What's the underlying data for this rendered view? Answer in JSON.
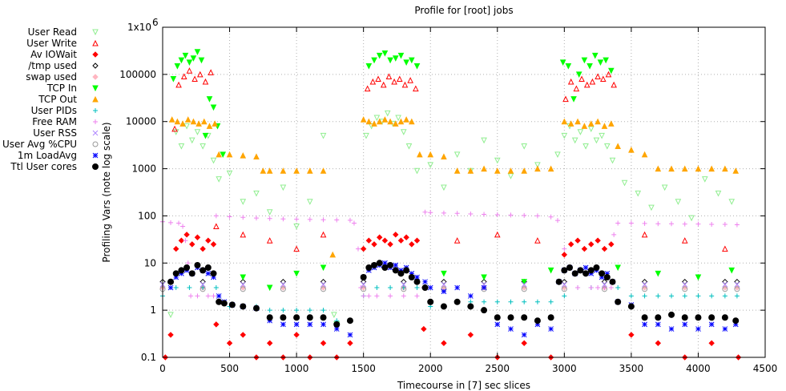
{
  "chart_data": {
    "type": "scatter",
    "title": "Profile for [root] jobs",
    "xlabel": "Timecourse in [7] sec slices",
    "ylabel": "Profiling Vars (note log scale)",
    "xlim": [
      0,
      4500
    ],
    "ylim": [
      0.1,
      1000000
    ],
    "y_scale": "log",
    "grid": true,
    "legend_position": "left",
    "x_ticks": [
      0,
      500,
      1000,
      1500,
      2000,
      2500,
      3000,
      3500,
      4000,
      4500
    ],
    "x_tick_labels": [
      "0",
      "500",
      "1000",
      "1500",
      "2000",
      "2500",
      "3000",
      "3500",
      "4000",
      "4500"
    ],
    "y_ticks": [
      0.1,
      1,
      10,
      100,
      1000,
      10000,
      100000
    ],
    "y_tick_labels": [
      "0.1",
      "1",
      "10",
      "100",
      "1000",
      "10000",
      "100000"
    ],
    "y_top_label": "1x10",
    "y_top_exponent": "6",
    "series": [
      {
        "name": "User Read",
        "marker": "triangle-down-open",
        "color": "#90ee90",
        "x": [
          60,
          100,
          140,
          180,
          220,
          260,
          300,
          340,
          380,
          420,
          500,
          600,
          700,
          800,
          900,
          1000,
          1100,
          1200,
          1280,
          1520,
          1560,
          1600,
          1640,
          1680,
          1720,
          1760,
          1800,
          1840,
          1900,
          2000,
          2100,
          2200,
          2300,
          2400,
          2500,
          2600,
          2700,
          2800,
          2950,
          3000,
          3040,
          3080,
          3120,
          3160,
          3200,
          3240,
          3280,
          3320,
          3360,
          3450,
          3550,
          3650,
          3750,
          3850,
          3950,
          4050,
          4150,
          4250
        ],
        "y": [
          0.8,
          6000,
          3000,
          8000,
          4000,
          6000,
          3000,
          5000,
          1500,
          600,
          800,
          200,
          300,
          120,
          400,
          60,
          200,
          5000,
          0.8,
          5000,
          8000,
          12000,
          10000,
          15000,
          9000,
          12000,
          6000,
          3000,
          900,
          1200,
          400,
          2000,
          900,
          4000,
          1500,
          700,
          3000,
          1200,
          2000,
          5000,
          8000,
          4000,
          6000,
          3000,
          7000,
          4000,
          5000,
          3000,
          1500,
          500,
          300,
          150,
          400,
          200,
          90,
          600,
          300,
          200
        ]
      },
      {
        "name": "User Write",
        "marker": "triangle-up-open",
        "color": "#ff0000",
        "x": [
          90,
          120,
          160,
          200,
          240,
          280,
          320,
          360,
          400,
          600,
          800,
          1000,
          1200,
          1530,
          1570,
          1610,
          1650,
          1690,
          1730,
          1770,
          1810,
          1850,
          1890,
          2200,
          2500,
          2800,
          3010,
          3050,
          3090,
          3130,
          3170,
          3210,
          3250,
          3290,
          3330,
          3370,
          3600,
          3900,
          4200
        ],
        "y": [
          7000,
          60000,
          90000,
          120000,
          80000,
          100000,
          70000,
          110000,
          60,
          40,
          30,
          20,
          40,
          50000,
          70000,
          80000,
          60000,
          90000,
          70000,
          80000,
          60000,
          75000,
          50000,
          30,
          40,
          30,
          30000,
          70000,
          50000,
          80000,
          60000,
          70000,
          90000,
          80000,
          100000,
          60000,
          40,
          30,
          20
        ]
      },
      {
        "name": "Av IOWait",
        "marker": "diamond-filled",
        "color": "#ff0000",
        "x": [
          20,
          60,
          100,
          140,
          180,
          220,
          260,
          300,
          340,
          380,
          400,
          500,
          600,
          700,
          800,
          900,
          1000,
          1100,
          1200,
          1300,
          1400,
          1500,
          1540,
          1580,
          1620,
          1660,
          1700,
          1740,
          1780,
          1820,
          1860,
          1900,
          1950,
          2100,
          2300,
          2500,
          2700,
          2900,
          3000,
          3050,
          3100,
          3150,
          3200,
          3250,
          3300,
          3350,
          3500,
          3700,
          3900,
          4100,
          4300
        ],
        "y": [
          0.1,
          0.3,
          20,
          30,
          40,
          25,
          35,
          20,
          30,
          25,
          0.5,
          0.2,
          0.3,
          0.1,
          0.2,
          0.1,
          0.3,
          0.1,
          0.2,
          0.1,
          0.2,
          20,
          30,
          25,
          35,
          30,
          25,
          40,
          30,
          35,
          25,
          30,
          0.4,
          0.2,
          0.3,
          0.1,
          0.2,
          0.1,
          15,
          25,
          30,
          20,
          25,
          30,
          20,
          25,
          0.3,
          0.2,
          0.1,
          0.2,
          0.1
        ]
      },
      {
        "name": "/tmp used",
        "marker": "diamond-open",
        "color": "#000000",
        "x": [
          0,
          300,
          600,
          900,
          1200,
          1500,
          1800,
          2100,
          2400,
          2700,
          3000,
          3300,
          3600,
          3900,
          4200,
          4290
        ],
        "y": [
          4,
          4,
          4,
          4,
          4,
          4,
          4,
          4,
          4,
          4,
          4,
          4,
          4,
          4,
          4,
          4
        ]
      },
      {
        "name": "swap used",
        "marker": "diamond-filled",
        "color": "#ffb6c1",
        "x": [
          0,
          300,
          600,
          900,
          1200,
          1500,
          1800,
          2100,
          2400,
          2700,
          3000,
          3300,
          3600,
          3900,
          4200,
          4290
        ],
        "y": [
          3,
          3,
          3,
          3,
          3,
          3,
          3,
          3,
          3,
          3,
          3,
          3,
          3,
          3,
          3,
          3
        ]
      },
      {
        "name": "TCP In",
        "marker": "triangle-down-filled",
        "color": "#00ff00",
        "x": [
          80,
          110,
          140,
          170,
          200,
          230,
          260,
          290,
          320,
          350,
          380,
          410,
          450,
          600,
          800,
          1000,
          1200,
          1300,
          1540,
          1580,
          1620,
          1660,
          1700,
          1740,
          1780,
          1820,
          1860,
          1900,
          2100,
          2400,
          2700,
          2900,
          2990,
          3030,
          3070,
          3110,
          3150,
          3190,
          3230,
          3270,
          3310,
          3350,
          3400,
          3700,
          4000,
          4250
        ],
        "y": [
          80000,
          150000,
          200000,
          250000,
          180000,
          220000,
          300000,
          200000,
          5000,
          30000,
          20000,
          8000,
          2000,
          5,
          3,
          6,
          8,
          0.5,
          150000,
          200000,
          250000,
          280000,
          200000,
          220000,
          250000,
          180000,
          200000,
          150000,
          6,
          5,
          4,
          7,
          180000,
          150000,
          30000,
          100000,
          200000,
          150000,
          250000,
          180000,
          200000,
          120000,
          8,
          6,
          5,
          7
        ]
      },
      {
        "name": "TCP Out",
        "marker": "triangle-up-filled",
        "color": "#ffa500",
        "x": [
          70,
          110,
          150,
          190,
          230,
          270,
          310,
          350,
          390,
          420,
          500,
          600,
          700,
          750,
          800,
          900,
          1000,
          1100,
          1200,
          1270,
          1500,
          1540,
          1580,
          1620,
          1660,
          1700,
          1740,
          1780,
          1820,
          1860,
          1920,
          2000,
          2100,
          2200,
          2300,
          2400,
          2500,
          2600,
          2700,
          2800,
          2900,
          3000,
          3050,
          3100,
          3150,
          3200,
          3250,
          3300,
          3350,
          3400,
          3500,
          3600,
          3700,
          3800,
          3900,
          4000,
          4100,
          4200,
          4280
        ],
        "y": [
          11000,
          10000,
          9000,
          11000,
          10000,
          9000,
          10000,
          8000,
          9000,
          2000,
          2000,
          1900,
          1800,
          900,
          900,
          900,
          900,
          900,
          900,
          15,
          11000,
          10000,
          9000,
          10000,
          11000,
          10000,
          9000,
          10000,
          11000,
          10000,
          2000,
          2000,
          1800,
          900,
          900,
          1000,
          900,
          900,
          900,
          1000,
          1000,
          10000,
          9000,
          10000,
          8000,
          9000,
          10000,
          8000,
          9000,
          3000,
          2500,
          2000,
          1000,
          1000,
          1000,
          1000,
          1000,
          1000,
          900
        ]
      },
      {
        "name": "User PIDs",
        "marker": "plus",
        "color": "#00bfbf",
        "x": [
          0,
          100,
          200,
          300,
          400,
          500,
          600,
          700,
          800,
          900,
          1000,
          1100,
          1200,
          1300,
          1400,
          1500,
          1600,
          1700,
          1800,
          1900,
          2000,
          2100,
          2200,
          2300,
          2400,
          2500,
          2600,
          2700,
          2800,
          2900,
          3000,
          3100,
          3200,
          3300,
          3400,
          3500,
          3600,
          3700,
          3800,
          3900,
          4000,
          4100,
          4200,
          4290
        ],
        "y": [
          2,
          3,
          3,
          3,
          3,
          1.2,
          1.2,
          1.2,
          1,
          1,
          1,
          1,
          1,
          0.6,
          0.6,
          2,
          3,
          3,
          3,
          3,
          1.2,
          1.2,
          1.5,
          1.5,
          1.5,
          1.5,
          1.5,
          1.5,
          1.5,
          1.5,
          2,
          3,
          3,
          3,
          3,
          2,
          2,
          2,
          2,
          2,
          2,
          2,
          2,
          2
        ]
      },
      {
        "name": "Free RAM",
        "marker": "plus",
        "color": "#ee82ee",
        "x": [
          0,
          60,
          120,
          150,
          170,
          190,
          210,
          260,
          340,
          380,
          400,
          500,
          600,
          700,
          800,
          900,
          1000,
          1100,
          1200,
          1300,
          1400,
          1430,
          1460,
          1480,
          1500,
          1540,
          1600,
          1700,
          1800,
          1900,
          1950,
          1960,
          2000,
          2100,
          2200,
          2300,
          2400,
          2500,
          2600,
          2700,
          2800,
          2900,
          2950,
          3000,
          3100,
          3200,
          3250,
          3300,
          3350,
          3370,
          3400,
          3500,
          3600,
          3700,
          3800,
          3900,
          4000,
          4100,
          4200,
          4290
        ],
        "y": [
          75,
          72,
          70,
          60,
          30,
          10,
          2,
          2,
          2,
          2,
          100,
          96,
          93,
          90,
          88,
          86,
          85,
          84,
          83,
          82,
          81,
          70,
          20,
          3,
          2,
          2,
          2,
          2,
          2,
          2,
          3,
          120,
          118,
          115,
          113,
          110,
          108,
          106,
          104,
          102,
          100,
          95,
          80,
          20,
          3,
          3,
          3,
          3,
          3,
          40,
          70,
          70,
          69,
          68,
          68,
          67,
          67,
          66,
          66,
          65
        ]
      },
      {
        "name": "User RSS",
        "marker": "cross",
        "color": "#b088ff",
        "x": [
          0,
          300,
          600,
          900,
          1200,
          1500,
          1800,
          2100,
          2400,
          2700,
          3000,
          3300,
          3600,
          3900,
          4200,
          4290
        ],
        "y": [
          3.5,
          3.5,
          3.5,
          3.5,
          3.5,
          3.5,
          3.5,
          3.5,
          3.5,
          3.5,
          3.5,
          3.5,
          3.5,
          3.5,
          3.5,
          3.5
        ]
      },
      {
        "name": "User Avg %CPU",
        "marker": "circle-open",
        "color": "#999999",
        "x": [
          0,
          300,
          600,
          900,
          1200,
          1500,
          1800,
          2100,
          2400,
          2700,
          3000,
          3300,
          3600,
          3900,
          4200,
          4290
        ],
        "y": [
          2.8,
          2.8,
          2.8,
          2.8,
          2.8,
          2.8,
          2.8,
          2.8,
          2.8,
          2.8,
          2.8,
          2.8,
          2.8,
          2.8,
          2.8,
          2.8
        ]
      },
      {
        "name": "1m LoadAvg",
        "marker": "star",
        "color": "#0000ff",
        "x": [
          60,
          100,
          140,
          180,
          220,
          260,
          300,
          340,
          380,
          420,
          460,
          520,
          600,
          700,
          800,
          900,
          1000,
          1100,
          1200,
          1300,
          1400,
          1500,
          1540,
          1580,
          1620,
          1660,
          1700,
          1740,
          1780,
          1820,
          1860,
          1900,
          1960,
          2000,
          2100,
          2200,
          2300,
          2400,
          2500,
          2600,
          2700,
          2800,
          2900,
          2960,
          3000,
          3040,
          3080,
          3120,
          3160,
          3200,
          3240,
          3280,
          3320,
          3360,
          3400,
          3500,
          3600,
          3700,
          3800,
          3900,
          4000,
          4100,
          4200,
          4280
        ],
        "y": [
          3,
          5,
          6,
          7,
          6,
          8,
          7,
          6,
          5,
          2,
          1.5,
          1.3,
          1.2,
          1.1,
          0.6,
          0.5,
          0.5,
          0.5,
          0.5,
          0.4,
          0.3,
          5,
          7,
          8,
          9,
          10,
          8,
          9,
          7,
          8,
          6,
          5,
          4,
          3,
          2.5,
          3,
          2,
          3,
          0.5,
          0.4,
          0.3,
          0.5,
          0.4,
          4,
          7,
          8,
          6,
          7,
          8,
          6,
          7,
          5,
          6,
          4,
          1.5,
          1.3,
          0.5,
          0.5,
          0.4,
          0.5,
          0.4,
          0.5,
          0.4,
          0.5
        ]
      },
      {
        "name": "Ttl User cores",
        "marker": "circle-filled",
        "color": "#000000",
        "x": [
          60,
          100,
          140,
          180,
          220,
          260,
          300,
          340,
          380,
          420,
          460,
          520,
          600,
          700,
          800,
          900,
          1000,
          1100,
          1200,
          1300,
          1400,
          1500,
          1540,
          1580,
          1620,
          1660,
          1700,
          1740,
          1780,
          1820,
          1860,
          1900,
          1960,
          2000,
          2100,
          2200,
          2300,
          2400,
          2500,
          2600,
          2700,
          2800,
          2900,
          2960,
          3000,
          3040,
          3080,
          3120,
          3160,
          3200,
          3240,
          3280,
          3320,
          3360,
          3400,
          3500,
          3600,
          3700,
          3800,
          3900,
          4000,
          4100,
          4200,
          4280
        ],
        "y": [
          4,
          6,
          7,
          8,
          6,
          9,
          7,
          8,
          6,
          1.5,
          1.4,
          1.3,
          1.2,
          1.1,
          0.7,
          0.7,
          0.7,
          0.7,
          0.7,
          0.5,
          0.6,
          5,
          8,
          9,
          10,
          8,
          9,
          7,
          6,
          7,
          5,
          4,
          3,
          1.5,
          1.2,
          1.5,
          1.2,
          1,
          0.7,
          0.7,
          0.7,
          0.6,
          0.7,
          4,
          7,
          8,
          6,
          7,
          6,
          7,
          8,
          6,
          5,
          4,
          1.5,
          1.2,
          0.7,
          0.7,
          0.8,
          0.7,
          0.7,
          0.7,
          0.7,
          0.6
        ]
      }
    ]
  }
}
